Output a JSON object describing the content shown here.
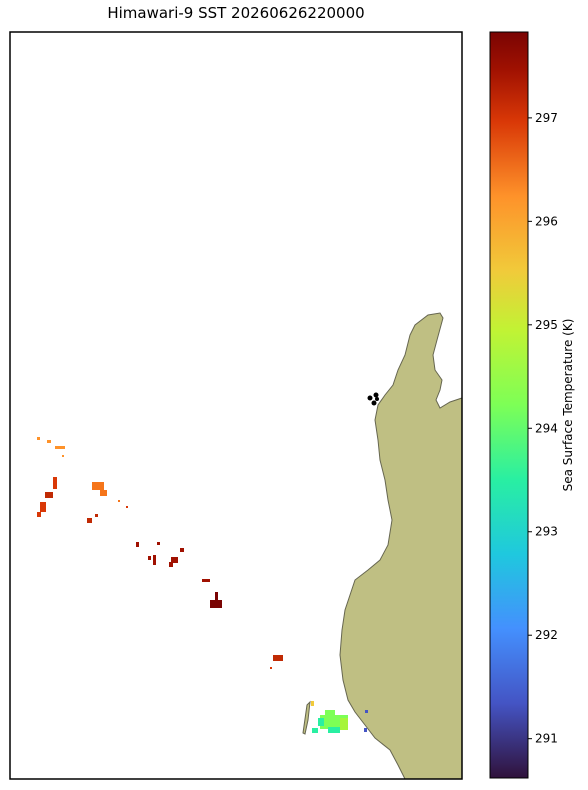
{
  "title": "Himawari-9 SST 20260626220000",
  "colorbar": {
    "label": "Sea Surface Temperature (K)",
    "clim": [
      290.62,
      297.83
    ],
    "ticks": [
      291,
      292,
      293,
      294,
      295,
      296,
      297
    ]
  }
}
